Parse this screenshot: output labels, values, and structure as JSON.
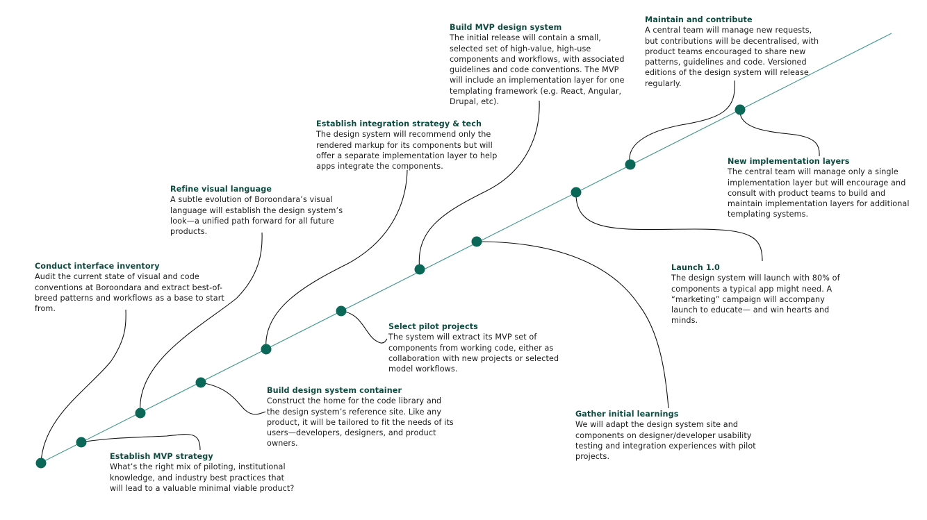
{
  "colors": {
    "line": "#4a9a95",
    "dot": "#0b6757",
    "title": "#0f4a40",
    "text": "#1a1a1a",
    "connector": "#111111"
  },
  "milestones": [
    {
      "title": "Conduct interface inventory",
      "desc": "Audit the current state of visual and code conventions at Boroondara and extract best-of-breed patterns and workflows as a base to start from."
    },
    {
      "title": "Establish MVP strategy",
      "desc": "What’s the right mix of piloting, institutional knowledge, and industry best practices that will lead to a valuable minimal viable product?"
    },
    {
      "title": "Refine visual language",
      "desc": "A subtle evolution of Boroondara’s visual language will establish the design system’s look—a unified path forward for all future products."
    },
    {
      "title": "Build design system container",
      "desc": "Construct the home for the code library and the design system’s reference site. Like any product, it will be tailored to fit the needs of its users—developers, designers, and product owners."
    },
    {
      "title": "Establish integration strategy & tech",
      "desc": "The design system will recommend only the rendered markup for its components but will offer a separate implementation layer to help apps integrate the components."
    },
    {
      "title": "Select pilot projects",
      "desc": "The system will extract its MVP set of components from working code, either as collaboration with new projects or selected model workflows."
    },
    {
      "title": "Build MVP design system",
      "desc": "The initial release will contain a small, selected set of high-value, high-use components and workflows, with associated guidelines and code conventions. The MVP will include an implementation layer for one templating framework (e.g. React, Angular, Drupal, etc)."
    },
    {
      "title": "Gather initial learnings",
      "desc": "We will adapt the design system site and components on designer/developer usability testing and integration experiences with pilot projects."
    },
    {
      "title": "Launch 1.0",
      "desc": "The design system will launch with 80% of components a typical app might need. A “marketing” campaign will accompany launch to educate— and win hearts and minds."
    },
    {
      "title": "Maintain and contribute",
      "desc": "A central team will manage new requests, but contributions will be decentralised, with product teams encouraged to share new patterns, guidelines and code. Versioned editions of the design system will release regularly."
    },
    {
      "title": "New implementation layers",
      "desc": "The central team will manage only a single implementation layer but will encourage and consult with product teams to build and maintain implementation layers for additional templating systems."
    }
  ]
}
